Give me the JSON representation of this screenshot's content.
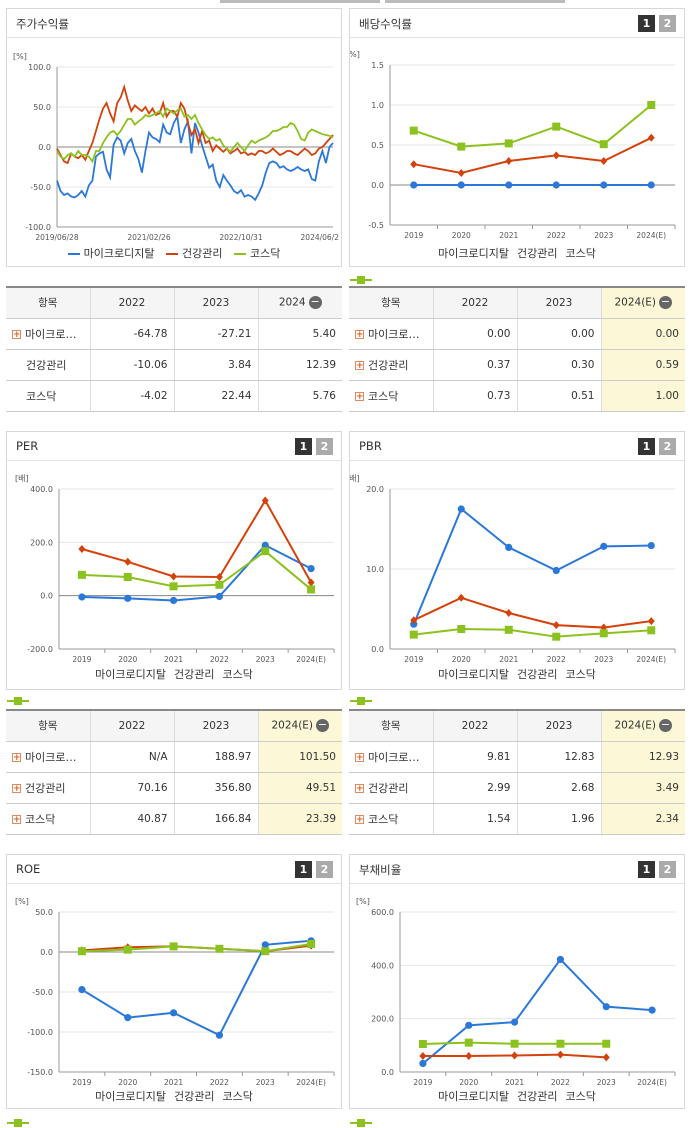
{
  "colors": {
    "blue": "#2b78d8",
    "red": "#d4420c",
    "green": "#8cc21f"
  },
  "legend_names": [
    "마이크로디지탈",
    "건강관리",
    "코스닥"
  ],
  "buttons": {
    "b1": "1",
    "b2": "2"
  },
  "panels": {
    "price": {
      "title": "주가수익률"
    },
    "div": {
      "title": "배당수익률"
    },
    "per": {
      "title": "PER"
    },
    "pbr": {
      "title": "PBR"
    },
    "roe": {
      "title": "ROE"
    },
    "debt": {
      "title": "부채비율"
    }
  },
  "tables": {
    "price": {
      "header": [
        "항목",
        "2022",
        "2023",
        "2024"
      ],
      "rows": [
        [
          "마이크로…",
          "-64.78",
          "-27.21",
          "5.40"
        ],
        [
          "건강관리",
          "-10.06",
          "3.84",
          "12.39"
        ],
        [
          "코스닥",
          "-4.02",
          "22.44",
          "5.76"
        ]
      ],
      "plus": [
        true,
        false,
        false
      ]
    },
    "div": {
      "header": [
        "항목",
        "2022",
        "2023",
        "2024(E)"
      ],
      "rows": [
        [
          "마이크로…",
          "0.00",
          "0.00",
          "0.00"
        ],
        [
          "건강관리",
          "0.37",
          "0.30",
          "0.59"
        ],
        [
          "코스닥",
          "0.73",
          "0.51",
          "1.00"
        ]
      ],
      "plus": [
        true,
        true,
        true
      ]
    },
    "per": {
      "header": [
        "항목",
        "2022",
        "2023",
        "2024(E)"
      ],
      "rows": [
        [
          "마이크로…",
          "N/A",
          "188.97",
          "101.50"
        ],
        [
          "건강관리",
          "70.16",
          "356.80",
          "49.51"
        ],
        [
          "코스닥",
          "40.87",
          "166.84",
          "23.39"
        ]
      ],
      "plus": [
        true,
        true,
        true
      ]
    },
    "pbr": {
      "header": [
        "항목",
        "2022",
        "2023",
        "2024(E)"
      ],
      "rows": [
        [
          "마이크로…",
          "9.81",
          "12.83",
          "12.93"
        ],
        [
          "건강관리",
          "2.99",
          "2.68",
          "3.49"
        ],
        [
          "코스닥",
          "1.54",
          "1.96",
          "2.34"
        ]
      ],
      "plus": [
        true,
        true,
        true
      ]
    }
  },
  "chart_data": [
    {
      "id": "price",
      "type": "line",
      "unit": "[%]",
      "ylim": [
        -100,
        100
      ],
      "yticks": [
        "100.0",
        "50.0",
        "0.0",
        "-50.0",
        "-100.0"
      ],
      "xticks": [
        "2019/06/28",
        "2021/02/26",
        "2022/10/31",
        "2024/06/2"
      ],
      "series": [
        {
          "name": "마이크로디지탈",
          "values": [
            -42,
            -55,
            -60,
            -58,
            -62,
            -63,
            -60,
            -55,
            -62,
            -48,
            -42,
            -12,
            -8,
            -6,
            -28,
            -38,
            3,
            12,
            8,
            -8,
            5,
            10,
            -5,
            -15,
            -32,
            -5,
            18,
            12,
            10,
            6,
            28,
            18,
            16,
            30,
            38,
            5,
            22,
            32,
            -8,
            30,
            18,
            2,
            -12,
            -26,
            -22,
            -42,
            -50,
            -35,
            -42,
            -48,
            -55,
            -58,
            -54,
            -62,
            -60,
            -62,
            -66,
            -58,
            -48,
            -32,
            -20,
            -18,
            -20,
            -26,
            -24,
            -28,
            -30,
            -28,
            -25,
            -28,
            -30,
            -28,
            -40,
            -42,
            -18,
            -5,
            -20,
            0,
            5
          ]
        },
        {
          "name": "건강관리",
          "values": [
            -2,
            -10,
            -18,
            -20,
            -8,
            -12,
            -14,
            -10,
            -16,
            -5,
            5,
            20,
            35,
            48,
            55,
            42,
            32,
            55,
            62,
            75,
            58,
            45,
            52,
            48,
            45,
            50,
            42,
            48,
            40,
            42,
            55,
            38,
            45,
            45,
            38,
            55,
            48,
            30,
            15,
            22,
            5,
            20,
            5,
            8,
            -5,
            2,
            -2,
            -6,
            -2,
            -8,
            -5,
            -2,
            -8,
            -6,
            -10,
            -8,
            -10,
            -5,
            -5,
            -8,
            -6,
            -2,
            -6,
            -10,
            -8,
            -5,
            -5,
            -8,
            -10,
            -6,
            -2,
            -5,
            -10,
            -8,
            -2,
            0,
            5,
            10,
            15
          ]
        },
        {
          "name": "코스닥",
          "values": [
            -5,
            -12,
            -15,
            -10,
            -8,
            -12,
            -5,
            -10,
            -10,
            -12,
            -18,
            -5,
            -5,
            5,
            12,
            18,
            20,
            15,
            20,
            28,
            35,
            35,
            28,
            32,
            35,
            40,
            38,
            40,
            42,
            45,
            38,
            48,
            45,
            42,
            46,
            48,
            38,
            40,
            35,
            40,
            30,
            22,
            15,
            10,
            12,
            8,
            10,
            2,
            -2,
            -6,
            0,
            5,
            0,
            -5,
            2,
            8,
            5,
            8,
            10,
            12,
            15,
            20,
            20,
            22,
            25,
            25,
            30,
            28,
            20,
            10,
            8,
            18,
            22,
            20,
            18,
            16,
            15,
            14,
            12
          ]
        }
      ]
    },
    {
      "id": "div",
      "type": "line",
      "unit": "[%]",
      "ylim": [
        -0.5,
        1.5
      ],
      "yticks": [
        "1.5",
        "1.0",
        "0.5",
        "0.0",
        "-0.5"
      ],
      "categories": [
        "2019",
        "2020",
        "2021",
        "2022",
        "2023",
        "2024(E)"
      ],
      "series": [
        {
          "name": "마이크로디지탈",
          "values": [
            0,
            0,
            0,
            0,
            0,
            0
          ]
        },
        {
          "name": "건강관리",
          "values": [
            0.26,
            0.15,
            0.3,
            0.37,
            0.3,
            0.59
          ]
        },
        {
          "name": "코스닥",
          "values": [
            0.68,
            0.48,
            0.52,
            0.73,
            0.51,
            1.0
          ]
        }
      ]
    },
    {
      "id": "per",
      "type": "line",
      "unit": "[배]",
      "ylim": [
        -200,
        400
      ],
      "yticks": [
        "400.0",
        "200.0",
        "0.0",
        "-200.0"
      ],
      "categories": [
        "2019",
        "2020",
        "2021",
        "2022",
        "2023",
        "2024(E)"
      ],
      "series": [
        {
          "name": "마이크로디지탈",
          "values": [
            -5,
            -10,
            -18,
            -3,
            188.97,
            101.5
          ]
        },
        {
          "name": "건강관리",
          "values": [
            175,
            127,
            72,
            70.16,
            356.8,
            49.51
          ]
        },
        {
          "name": "코스닥",
          "values": [
            78,
            70,
            35,
            40.87,
            166.84,
            23.39
          ]
        }
      ]
    },
    {
      "id": "pbr",
      "type": "line",
      "unit": "[배]",
      "ylim": [
        0,
        20
      ],
      "yticks": [
        "20.0",
        "10.0",
        "0.0"
      ],
      "categories": [
        "2019",
        "2020",
        "2021",
        "2022",
        "2023",
        "2024(E)"
      ],
      "series": [
        {
          "name": "마이크로디지탈",
          "values": [
            3.1,
            17.5,
            12.7,
            9.81,
            12.83,
            12.93
          ]
        },
        {
          "name": "건강관리",
          "values": [
            3.6,
            6.4,
            4.5,
            2.99,
            2.68,
            3.49
          ]
        },
        {
          "name": "코스닥",
          "values": [
            1.8,
            2.5,
            2.4,
            1.54,
            1.96,
            2.34
          ]
        }
      ]
    },
    {
      "id": "roe",
      "type": "line",
      "unit": "[%]",
      "ylim": [
        -150,
        50
      ],
      "yticks": [
        "50.0",
        "0.0",
        "-50.0",
        "-100.0",
        "-150.0"
      ],
      "categories": [
        "2019",
        "2020",
        "2021",
        "2022",
        "2023",
        "2024(E)"
      ],
      "series": [
        {
          "name": "마이크로디지탈",
          "values": [
            -47,
            -82,
            -76,
            -104,
            9,
            14
          ]
        },
        {
          "name": "건강관리",
          "values": [
            2,
            6,
            7,
            4,
            1,
            8
          ]
        },
        {
          "name": "코스닥",
          "values": [
            1,
            3,
            7,
            4,
            1,
            10
          ]
        }
      ]
    },
    {
      "id": "debt",
      "type": "line",
      "unit": "[%]",
      "ylim": [
        0,
        600
      ],
      "yticks": [
        "600.0",
        "400.0",
        "200.0",
        "0.0"
      ],
      "categories": [
        "2019",
        "2020",
        "2021",
        "2022",
        "2023",
        "2024(E)"
      ],
      "series": [
        {
          "name": "마이크로디지탈",
          "values": [
            32,
            175,
            187,
            422,
            245,
            232
          ]
        },
        {
          "name": "건강관리",
          "values": [
            60,
            60,
            62,
            65,
            55,
            null
          ]
        },
        {
          "name": "코스닥",
          "values": [
            105,
            110,
            106,
            106,
            106,
            null
          ]
        }
      ]
    }
  ]
}
